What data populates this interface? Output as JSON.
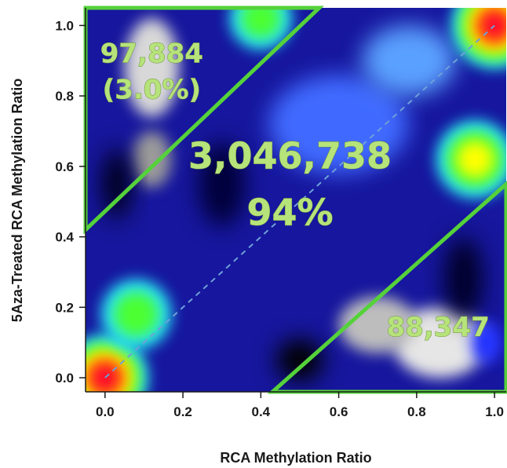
{
  "chart_data": {
    "type": "heatmap",
    "title": "",
    "xlabel": "RCA Methylation Ratio",
    "ylabel": "5Aza-Treated RCA Methylation Ratio",
    "xlim": [
      -0.05,
      1.03
    ],
    "ylim": [
      -0.04,
      1.05
    ],
    "x_ticks": [
      "0.0",
      "0.2",
      "0.4",
      "0.6",
      "0.8",
      "1.0"
    ],
    "y_ticks": [
      "0.0",
      "0.2",
      "0.4",
      "0.6",
      "0.8",
      "1.0"
    ],
    "diagonal": {
      "style": "dashed",
      "color": "#6fa0d8",
      "from": [
        0,
        0
      ],
      "to": [
        1,
        1
      ]
    },
    "regions": [
      {
        "name": "upper-left",
        "polygon_data": [
          [
            -0.05,
            0.42
          ],
          [
            -0.05,
            1.05
          ],
          [
            0.55,
            1.05
          ]
        ],
        "border_color": "#55d23a"
      },
      {
        "name": "lower-right",
        "polygon_data": [
          [
            0.43,
            -0.04
          ],
          [
            1.03,
            -0.04
          ],
          [
            1.03,
            0.55
          ]
        ],
        "border_color": "#55d23a"
      }
    ],
    "annotations": [
      {
        "name": "upper-left-count",
        "lines": [
          "97,884",
          "(3.0%)"
        ],
        "x": 0.12,
        "y": 0.87
      },
      {
        "name": "center-count",
        "lines": [
          "3,046,738",
          "94%"
        ],
        "x": 0.475,
        "y": 0.55
      },
      {
        "name": "lower-right-count",
        "lines": [
          "88,347"
        ],
        "x": 0.855,
        "y": 0.145
      }
    ],
    "colorscale": [
      "#000000",
      "#1a1acc",
      "#2b5bff",
      "#25e6ff",
      "#4cff33",
      "#ffff00",
      "#ff7a00",
      "#ff0033"
    ],
    "density_hotspots": [
      {
        "x": 0.0,
        "y": 0.0,
        "intensity": 1.0,
        "spread": 0.11
      },
      {
        "x": 1.0,
        "y": 1.0,
        "intensity": 1.0,
        "spread": 0.11
      },
      {
        "x": 0.95,
        "y": 0.62,
        "intensity": 0.55,
        "spread": 0.1
      },
      {
        "x": 0.08,
        "y": 0.18,
        "intensity": 0.45,
        "spread": 0.09
      },
      {
        "x": 0.4,
        "y": 1.02,
        "intensity": 0.35,
        "spread": 0.08
      }
    ]
  }
}
